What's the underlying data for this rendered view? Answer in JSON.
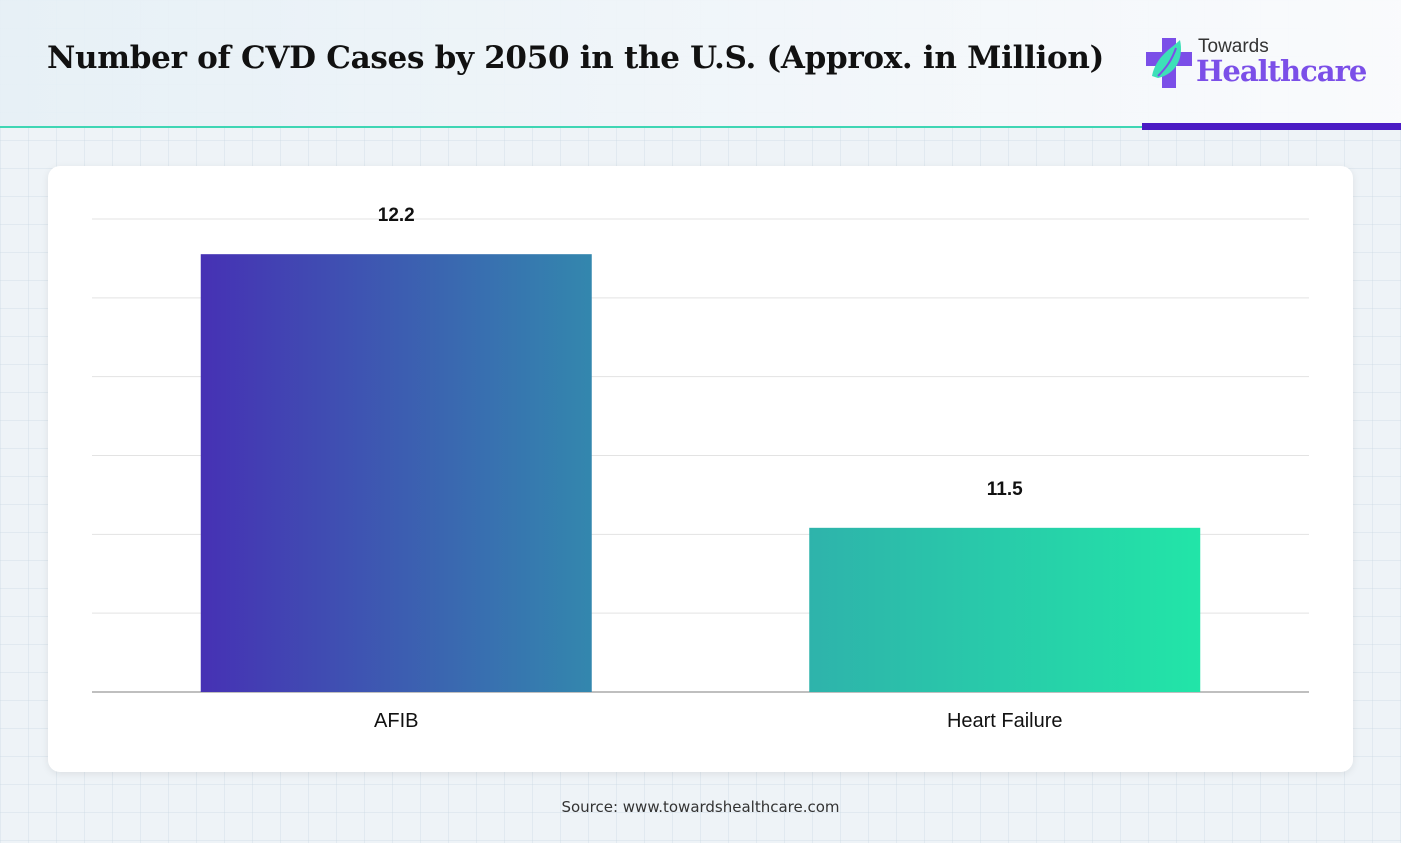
{
  "header": {
    "title": "Number of CVD Cases by 2050 in the U.S. (Approx. in Million)"
  },
  "logo": {
    "line1": "Towards",
    "line2": "Healthcare"
  },
  "footer": {
    "source": "Source: www.towardshealthcare.com"
  },
  "colors": {
    "teal_line": "#3fd6b4",
    "purple_bar": "#4b1bc4",
    "afib_start": "#4631b4",
    "afib_end": "#3387ae",
    "hf_start": "#2eb3ab",
    "hf_end": "#22e5a8"
  },
  "chart_data": {
    "type": "bar",
    "title": "Number of CVD Cases by 2050 in the U.S. (Approx. in Million)",
    "categories": [
      "AFIB",
      "Heart Failure"
    ],
    "values": [
      12.2,
      11.5
    ],
    "value_labels": [
      "12.2",
      "11.5"
    ],
    "xlabel": "",
    "ylabel": "",
    "ylim": [
      11.08,
      12.29
    ],
    "grid": true,
    "gridlines": 6
  }
}
